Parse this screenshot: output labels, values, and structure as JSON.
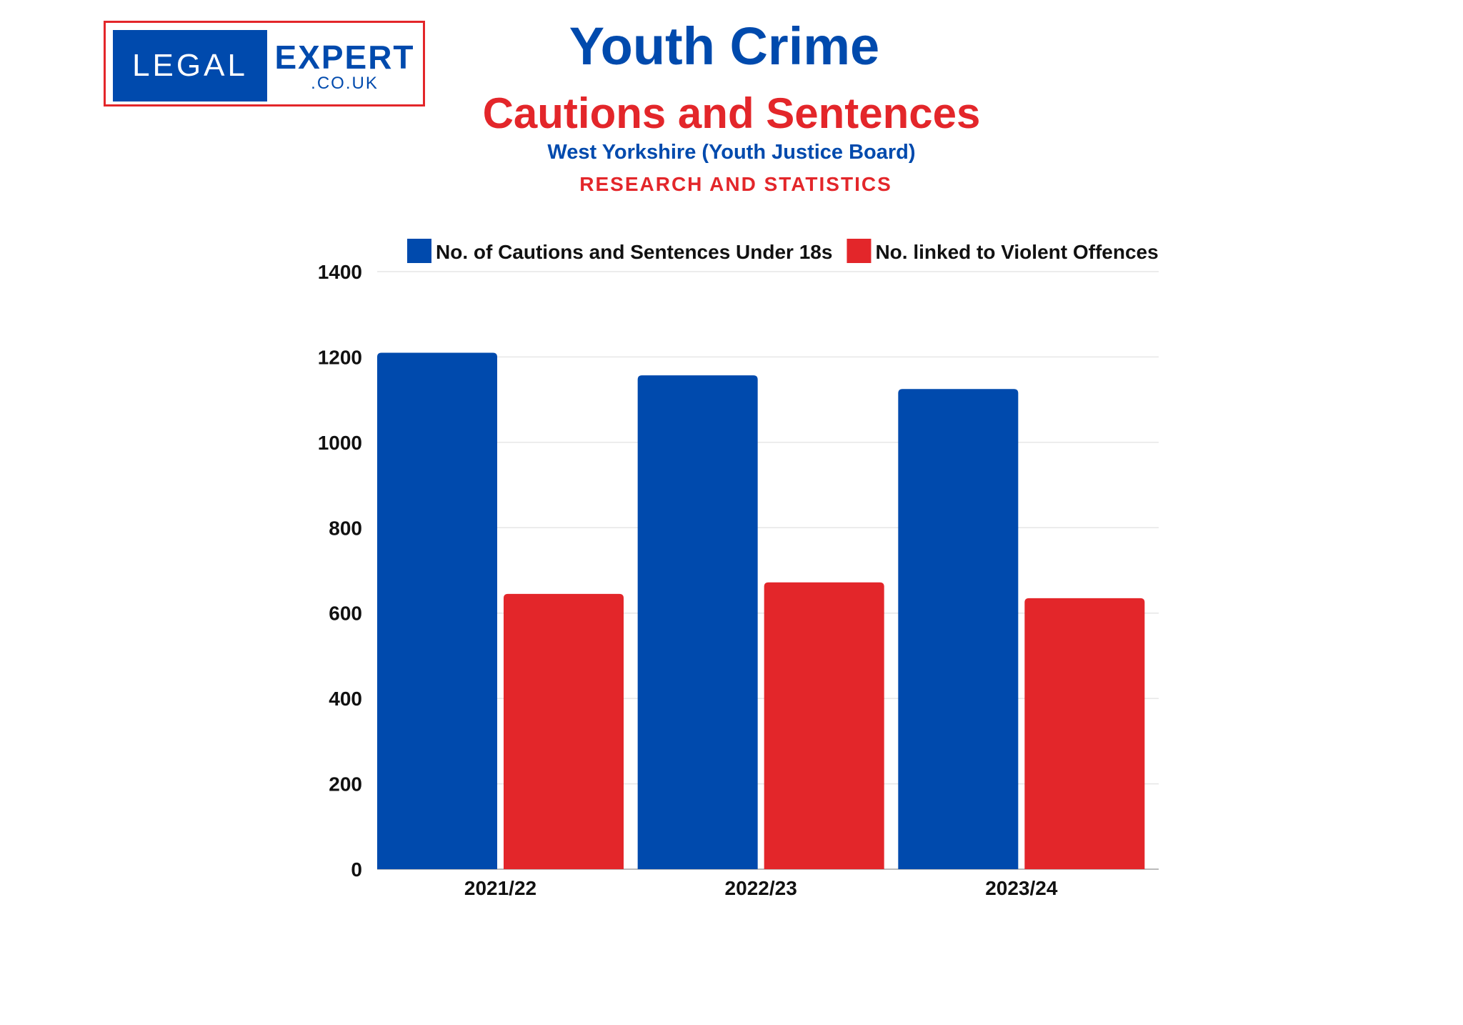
{
  "logo": {
    "left": "LEGAL",
    "right": "EXPERT",
    "domain": ".CO.UK"
  },
  "header": {
    "title": "Youth Crime",
    "subtitle": "Cautions and Sentences",
    "region": "West Yorkshire (Youth Justice Board)",
    "tag": "RESEARCH AND STATISTICS"
  },
  "chart_data": {
    "type": "bar",
    "categories": [
      "2021/22",
      "2022/23",
      "2023/24"
    ],
    "series": [
      {
        "name": "No. of Cautions and Sentences Under 18s",
        "color": "#004aad",
        "values": [
          1210,
          1157,
          1125
        ]
      },
      {
        "name": "No. linked to Violent Offences",
        "color": "#e3262a",
        "values": [
          645,
          672,
          635
        ]
      }
    ],
    "ylim": [
      0,
      1400
    ],
    "yticks": [
      "0",
      "200",
      "400",
      "600",
      "800",
      "1000",
      "1200",
      "1400"
    ],
    "grid": true,
    "legend": "top"
  }
}
